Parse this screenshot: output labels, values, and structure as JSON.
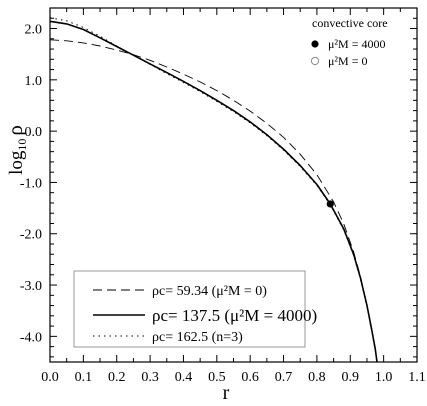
{
  "chart_data": {
    "type": "line",
    "xlabel": "r",
    "ylabel_main": "log",
    "ylabel_sub": "10",
    "ylabel_sym": "ρ",
    "xlim": [
      0.0,
      1.1
    ],
    "ylim": [
      -4.5,
      2.4
    ],
    "x_ticks": [
      "0.0",
      "0.1",
      "0.2",
      "0.3",
      "0.4",
      "0.5",
      "0.6",
      "0.7",
      "0.8",
      "0.9",
      "1.0",
      "1.1"
    ],
    "y_ticks": [
      "2.0",
      "1.0",
      "0.0",
      "-1.0",
      "-2.0",
      "-3.0",
      "-4.0"
    ],
    "series": [
      {
        "name": "ρc= 59.34 (μ²M = 0)",
        "style": "dashed",
        "x": [
          0.0,
          0.05,
          0.1,
          0.15,
          0.2,
          0.25,
          0.3,
          0.35,
          0.4,
          0.45,
          0.5,
          0.55,
          0.6,
          0.65,
          0.7,
          0.75,
          0.8,
          0.85,
          0.88,
          0.91,
          0.93,
          0.95,
          0.965,
          0.975,
          0.98
        ],
        "y": [
          1.78,
          1.76,
          1.72,
          1.66,
          1.58,
          1.49,
          1.38,
          1.25,
          1.11,
          0.96,
          0.79,
          0.6,
          0.39,
          0.15,
          -0.12,
          -0.45,
          -0.85,
          -1.38,
          -1.8,
          -2.35,
          -2.82,
          -3.4,
          -3.9,
          -4.25,
          -4.5
        ]
      },
      {
        "name": "ρc= 137.5 (μ²M = 4000)",
        "style": "solid",
        "x": [
          0.0,
          0.05,
          0.1,
          0.15,
          0.2,
          0.25,
          0.3,
          0.35,
          0.4,
          0.45,
          0.5,
          0.55,
          0.6,
          0.65,
          0.7,
          0.75,
          0.8,
          0.84,
          0.88,
          0.91,
          0.93,
          0.95,
          0.965,
          0.975,
          0.98
        ],
        "y": [
          2.14,
          2.09,
          1.98,
          1.82,
          1.65,
          1.48,
          1.31,
          1.14,
          0.97,
          0.79,
          0.6,
          0.4,
          0.18,
          -0.07,
          -0.35,
          -0.67,
          -1.04,
          -1.42,
          -1.9,
          -2.4,
          -2.85,
          -3.4,
          -3.9,
          -4.25,
          -4.5
        ]
      },
      {
        "name": "ρc= 162.5 (n=3)",
        "style": "dotted",
        "x": [
          0.0,
          0.05,
          0.1,
          0.15,
          0.2,
          0.25,
          0.3,
          0.35,
          0.4,
          0.45,
          0.5,
          0.55,
          0.6,
          0.65,
          0.7,
          0.75,
          0.8,
          0.84,
          0.88,
          0.91,
          0.93,
          0.95,
          0.965,
          0.975,
          0.98
        ],
        "y": [
          2.21,
          2.15,
          2.02,
          1.85,
          1.66,
          1.48,
          1.3,
          1.12,
          0.95,
          0.77,
          0.58,
          0.38,
          0.16,
          -0.09,
          -0.37,
          -0.69,
          -1.06,
          -1.44,
          -1.92,
          -2.42,
          -2.87,
          -3.42,
          -3.92,
          -4.27,
          -4.5
        ]
      }
    ],
    "marker": {
      "x": 0.84,
      "y": -1.42
    },
    "inset_legend": {
      "title": "convective core",
      "items": [
        {
          "label": "μ²M = 4000",
          "symbol": "filled-circle"
        },
        {
          "label": "μ²M = 0",
          "symbol": "open-circle"
        }
      ]
    },
    "legend_placement": "bottom-left",
    "grid": false
  }
}
